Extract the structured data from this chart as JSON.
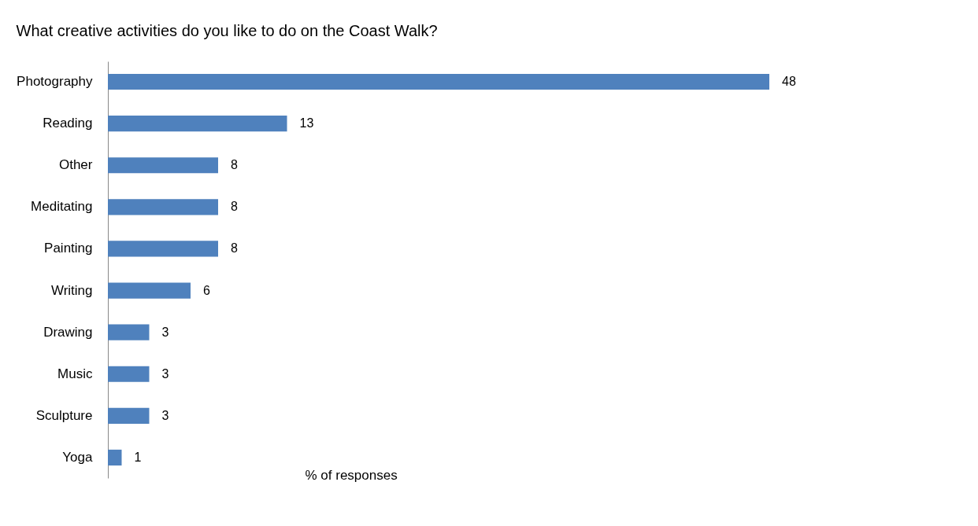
{
  "chart_data": {
    "type": "bar",
    "orientation": "horizontal",
    "title": "What creative activities do you like to do on the Coast Walk?",
    "xlabel": "% of responses",
    "categories": [
      "Photography",
      "Reading",
      "Other",
      "Meditating",
      "Painting",
      "Writing",
      "Drawing",
      "Music",
      "Sculpture",
      "Yoga"
    ],
    "values": [
      48,
      13,
      8,
      8,
      8,
      6,
      3,
      3,
      3,
      1
    ],
    "color": "#4f81bd",
    "data_labels": true,
    "tick_labels": "y",
    "grid": false
  }
}
